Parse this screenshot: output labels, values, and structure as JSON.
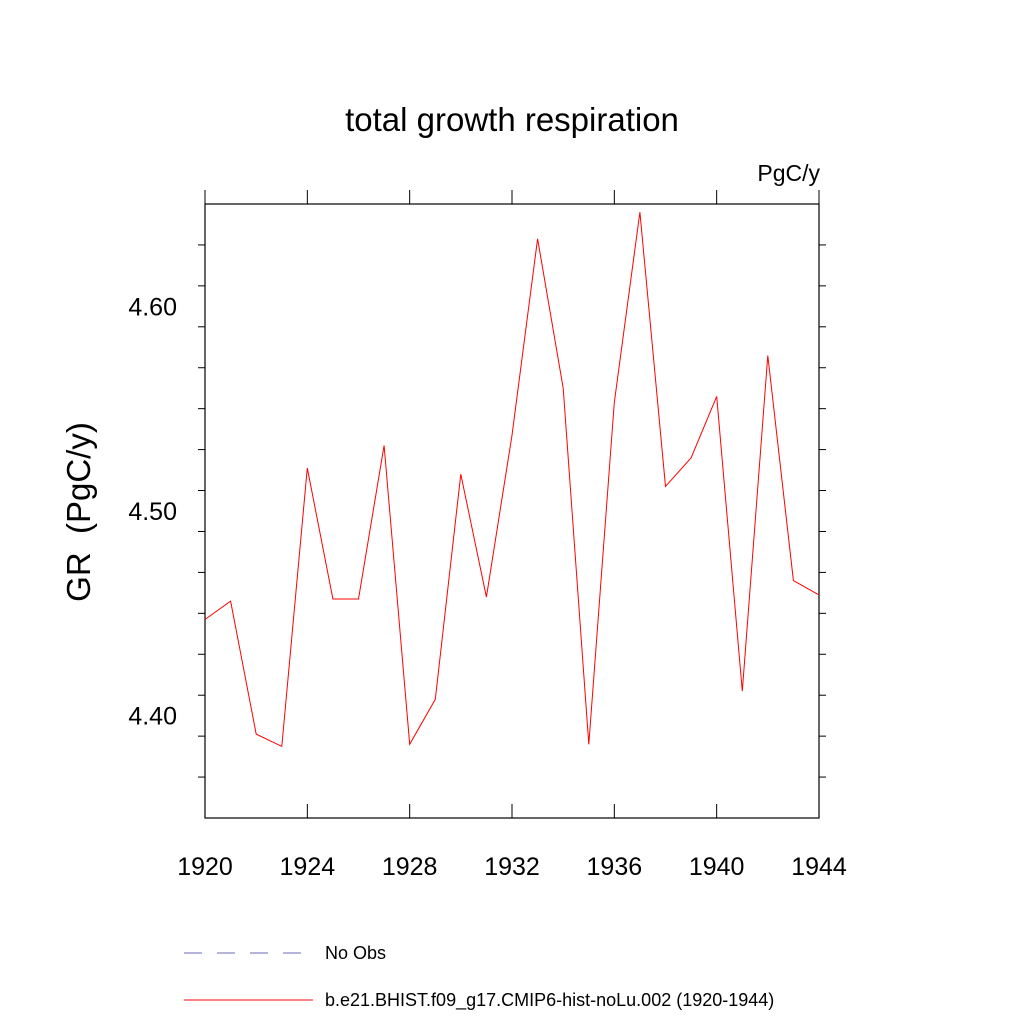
{
  "chart_data": {
    "type": "line",
    "title": "total growth respiration",
    "units": "PgC/y",
    "xlabel": "",
    "ylabel": "GR  (PgC/y)",
    "xlim": [
      1920,
      1944
    ],
    "ylim": [
      4.35,
      4.65
    ],
    "x_ticks": [
      1920,
      1924,
      1928,
      1932,
      1936,
      1940,
      1944
    ],
    "x_tick_labels": [
      "1920",
      "1924",
      "1928",
      "1932",
      "1936",
      "1940",
      "1944"
    ],
    "y_ticks": [
      4.4,
      4.5,
      4.6
    ],
    "y_tick_labels": [
      "4.40",
      "4.50",
      "4.60"
    ],
    "grid": false,
    "legend_position": "bottom",
    "series": [
      {
        "name": "b.e21.BHIST.f09_g17.CMIP6-hist-noLu.002 (1920-1944)",
        "color": "#ff0000",
        "style": "solid",
        "x": [
          1920,
          1921,
          1922,
          1923,
          1924,
          1925,
          1926,
          1927,
          1928,
          1929,
          1930,
          1931,
          1932,
          1933,
          1934,
          1935,
          1936,
          1937,
          1938,
          1939,
          1940,
          1941,
          1942,
          1943,
          1944
        ],
        "y": [
          4.447,
          4.456,
          4.391,
          4.385,
          4.521,
          4.457,
          4.457,
          4.532,
          4.386,
          4.408,
          4.518,
          4.458,
          4.537,
          4.633,
          4.56,
          4.386,
          4.553,
          4.646,
          4.512,
          4.526,
          4.556,
          4.412,
          4.576,
          4.466,
          4.459
        ]
      }
    ],
    "legend": [
      {
        "label": "No Obs",
        "color": "#6a6ab8",
        "style": "dashed"
      },
      {
        "label": "b.e21.BHIST.f09_g17.CMIP6-hist-noLu.002 (1920-1944)",
        "color": "#ff0000",
        "style": "solid"
      }
    ]
  }
}
